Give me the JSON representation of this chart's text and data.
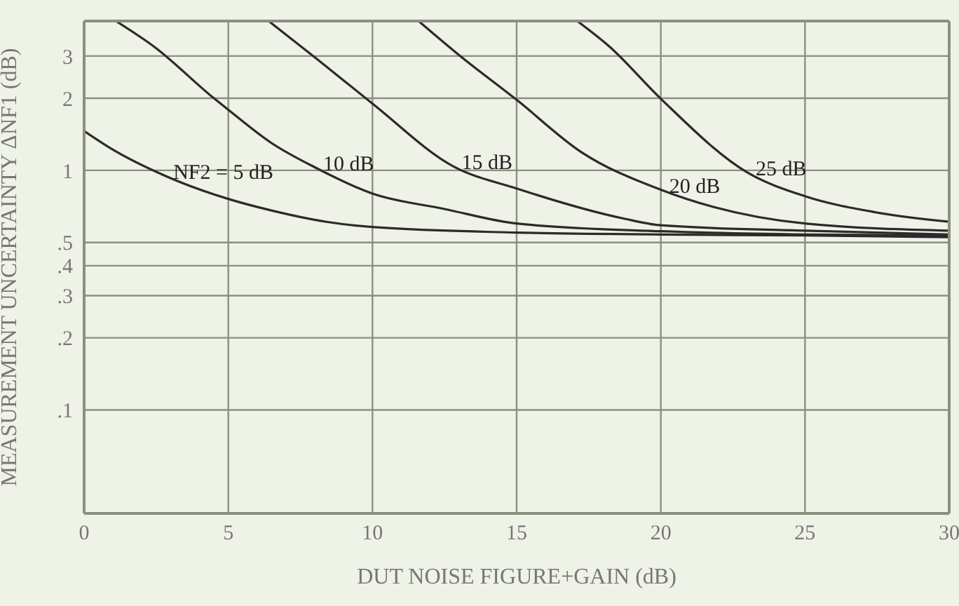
{
  "chart_data": {
    "type": "line",
    "xlabel": "DUT NOISE FIGURE+GAIN (dB)",
    "ylabel": "MEASUREMENT UNCERTAINTY ΔNF1 (dB)",
    "log": "y",
    "xlim": [
      0,
      30
    ],
    "xticks": [
      0,
      5,
      10,
      15,
      20,
      25,
      30
    ],
    "ylim": [
      0.037,
      4.2
    ],
    "yticks": [
      {
        "value": 0.1,
        "label": ".1"
      },
      {
        "value": 0.2,
        "label": ".2"
      },
      {
        "value": 0.3,
        "label": ".3"
      },
      {
        "value": 0.4,
        "label": ".4"
      },
      {
        "value": 0.5,
        "label": ".5"
      },
      1,
      2,
      3
    ],
    "grid": true,
    "legend": false,
    "marker": "none",
    "line_style": "solid",
    "series": [
      {
        "name": "NF2 = 5 dB",
        "color": "#2b2b2b",
        "x": [
          0,
          1,
          2.8,
          5,
          6.5,
          8.4,
          10,
          15,
          20,
          25,
          30
        ],
        "values": [
          1.46,
          1.22,
          0.95,
          0.76,
          0.68,
          0.61,
          0.58,
          0.55,
          0.54,
          0.535,
          0.526
        ]
      },
      {
        "name": "10 dB",
        "color": "#2b2b2b",
        "x": [
          1.1,
          2.4,
          4.5,
          5,
          6.5,
          8,
          10,
          12.5,
          15,
          20,
          25,
          30
        ],
        "values": [
          4.2,
          3.3,
          2.0,
          1.79,
          1.3,
          1.03,
          0.8,
          0.69,
          0.6,
          0.557,
          0.54,
          0.535
        ]
      },
      {
        "name": "15 dB",
        "color": "#2b2b2b",
        "x": [
          6.4,
          8.1,
          10,
          12.8,
          15,
          18.7,
          20,
          25,
          30
        ],
        "values": [
          4.2,
          2.9,
          1.9,
          1.04,
          0.84,
          0.63,
          0.59,
          0.56,
          0.54
        ]
      },
      {
        "name": "20 dB",
        "color": "#2b2b2b",
        "x": [
          11.6,
          13,
          15,
          17.25,
          20,
          25,
          30
        ],
        "values": [
          4.2,
          3.03,
          1.97,
          1.19,
          0.83,
          0.6,
          0.56
        ]
      },
      {
        "name": "25 dB",
        "color": "#2b2b2b",
        "x": [
          17.1,
          18.2,
          20,
          23,
          25,
          27.4,
          30
        ],
        "values": [
          4.2,
          3.3,
          1.99,
          0.98,
          0.78,
          0.67,
          0.61
        ]
      }
    ]
  }
}
